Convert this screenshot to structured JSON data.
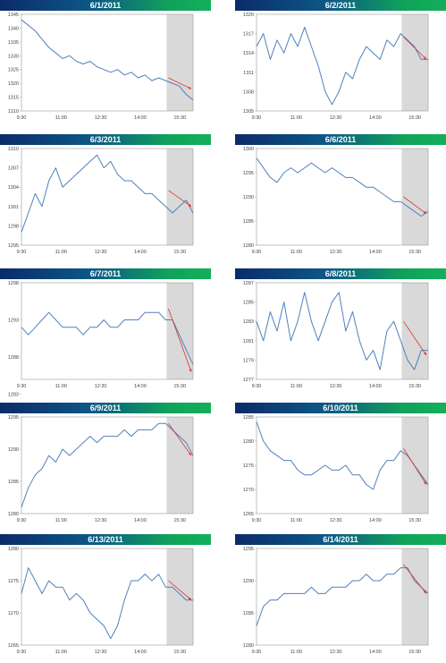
{
  "colors": {
    "line": "#4f81bd",
    "trend": "#e0312f",
    "shade": "#d9d9d9",
    "header_start": "#0b2b6b",
    "header_end": "#12b05a"
  },
  "chart_data": [
    {
      "type": "line",
      "title": "6/1/2011",
      "ylim": [
        1310,
        1345
      ],
      "yticks": [
        "1345",
        "1340",
        "1335",
        "1330",
        "1325",
        "1320",
        "1315",
        "1310"
      ],
      "xticks": [
        "9:30",
        "11:00",
        "12:30",
        "14:00",
        "15:30"
      ],
      "shaded_from": "15:00",
      "trend": {
        "from": 1322,
        "to": 1318
      },
      "values": [
        1343,
        1341,
        1339,
        1336,
        1333,
        1331,
        1329,
        1330,
        1328,
        1327,
        1328,
        1326,
        1325,
        1324,
        1325,
        1323,
        1324,
        1322,
        1323,
        1321,
        1322,
        1321,
        1320,
        1319,
        1316,
        1314
      ]
    },
    {
      "type": "line",
      "title": "6/2/2011",
      "ylim": [
        1305,
        1320
      ],
      "yticks": [
        "1320",
        "1317",
        "1314",
        "1311",
        "1308",
        "1305"
      ],
      "xticks": [
        "9:30",
        "11:00",
        "12:30",
        "14:00",
        "15:30"
      ],
      "shaded_from": "15:00",
      "trend": {
        "from": 1316.5,
        "to": 1313
      },
      "values": [
        1315,
        1317,
        1313,
        1316,
        1314,
        1317,
        1315,
        1318,
        1315,
        1312,
        1308,
        1306,
        1308,
        1311,
        1310,
        1313,
        1315,
        1314,
        1313,
        1316,
        1315,
        1317,
        1316,
        1315,
        1313,
        1313
      ]
    },
    {
      "type": "line",
      "title": "6/3/2011",
      "ylim": [
        1295,
        1310
      ],
      "yticks": [
        "1310",
        "1307",
        "1304",
        "1301",
        "1298",
        "1295"
      ],
      "xticks": [
        "9:30",
        "11:00",
        "12:30",
        "14:00",
        "15:30"
      ],
      "shaded_from": "15:00",
      "trend": {
        "from": 1303.5,
        "to": 1301
      },
      "values": [
        1297,
        1300,
        1303,
        1301,
        1305,
        1307,
        1304,
        1305,
        1306,
        1307,
        1308,
        1309,
        1307,
        1308,
        1306,
        1305,
        1305,
        1304,
        1303,
        1303,
        1302,
        1301,
        1300,
        1301,
        1302,
        1300
      ]
    },
    {
      "type": "line",
      "title": "6/6/2011",
      "ylim": [
        1280,
        1300
      ],
      "yticks": [
        "1300",
        "1295",
        "1290",
        "1285",
        "1280"
      ],
      "xticks": [
        "9:30",
        "11:00",
        "12:30",
        "14:00",
        "15:30"
      ],
      "shaded_from": "15:00",
      "trend": {
        "from": 1290,
        "to": 1286.5
      },
      "values": [
        1298,
        1296,
        1294,
        1293,
        1295,
        1296,
        1295,
        1296,
        1297,
        1296,
        1295,
        1296,
        1295,
        1294,
        1294,
        1293,
        1292,
        1292,
        1291,
        1290,
        1289,
        1289,
        1288,
        1287,
        1286,
        1287
      ]
    },
    {
      "type": "line",
      "title": "6/7/2011",
      "ylim": [
        1285,
        1298
      ],
      "yticks": [
        "1298",
        "1293",
        "1288",
        "1283"
      ],
      "xticks": [
        "9:30",
        "11:00",
        "12:30",
        "14:00",
        "15:30"
      ],
      "shaded_from": "15:00",
      "trend": {
        "from": 1294.5,
        "to": 1286
      },
      "values": [
        1292,
        1291,
        1292,
        1293,
        1294,
        1293,
        1292,
        1292,
        1292,
        1291,
        1292,
        1292,
        1293,
        1292,
        1292,
        1293,
        1293,
        1293,
        1294,
        1294,
        1294,
        1293,
        1293,
        1291,
        1289,
        1287
      ]
    },
    {
      "type": "line",
      "title": "6/8/2011",
      "ylim": [
        1277,
        1287
      ],
      "yticks": [
        "1287",
        "1285",
        "1283",
        "1281",
        "1279",
        "1277"
      ],
      "xticks": [
        "9:30",
        "11:00",
        "12:30",
        "14:00",
        "15:30"
      ],
      "shaded_from": "15:00",
      "trend": {
        "from": 1283,
        "to": 1279.5
      },
      "values": [
        1283,
        1281,
        1284,
        1282,
        1285,
        1281,
        1283,
        1286,
        1283,
        1281,
        1283,
        1285,
        1286,
        1282,
        1284,
        1281,
        1279,
        1280,
        1278,
        1282,
        1283,
        1281,
        1279,
        1278,
        1280,
        1280
      ]
    },
    {
      "type": "line",
      "title": "6/9/2011",
      "ylim": [
        1280,
        1295
      ],
      "yticks": [
        "1295",
        "1290",
        "1285",
        "1280"
      ],
      "xticks": [
        "9:30",
        "11:00",
        "12:30",
        "14:00",
        "15:30"
      ],
      "shaded_from": "15:00",
      "trend": {
        "from": 1294,
        "to": 1289
      },
      "values": [
        1281,
        1284,
        1286,
        1287,
        1289,
        1288,
        1290,
        1289,
        1290,
        1291,
        1292,
        1291,
        1292,
        1292,
        1292,
        1293,
        1292,
        1293,
        1293,
        1293,
        1294,
        1294,
        1293,
        1292,
        1291,
        1289
      ]
    },
    {
      "type": "line",
      "title": "6/10/2011",
      "ylim": [
        1265,
        1285
      ],
      "yticks": [
        "1285",
        "1280",
        "1275",
        "1270",
        "1265"
      ],
      "xticks": [
        "9:30",
        "11:00",
        "12:30",
        "14:00",
        "15:30"
      ],
      "shaded_from": "15:00",
      "trend": {
        "from": 1278.5,
        "to": 1271
      },
      "values": [
        1284,
        1280,
        1278,
        1277,
        1276,
        1276,
        1274,
        1273,
        1273,
        1274,
        1275,
        1274,
        1274,
        1275,
        1273,
        1273,
        1271,
        1270,
        1274,
        1276,
        1276,
        1278,
        1277,
        1275,
        1273,
        1271
      ]
    },
    {
      "type": "line",
      "title": "6/13/2011",
      "ylim": [
        1265,
        1280
      ],
      "yticks": [
        "1280",
        "1275",
        "1270",
        "1265"
      ],
      "xticks": [
        "9:30",
        "11:00",
        "12:30",
        "14:00",
        "15:30"
      ],
      "shaded_from": "15:00",
      "trend": {
        "from": 1275,
        "to": 1272
      },
      "values": [
        1273,
        1277,
        1275,
        1273,
        1275,
        1274,
        1274,
        1272,
        1273,
        1272,
        1270,
        1269,
        1268,
        1266,
        1268,
        1272,
        1275,
        1275,
        1276,
        1275,
        1276,
        1274,
        1274,
        1273,
        1272,
        1272
      ]
    },
    {
      "type": "line",
      "title": "6/14/2011",
      "ylim": [
        1280,
        1295
      ],
      "yticks": [
        "1295",
        "1290",
        "1285",
        "1280"
      ],
      "xticks": [
        "9:30",
        "11:00",
        "12:30",
        "14:00",
        "15:30"
      ],
      "shaded_from": "15:00",
      "trend": {
        "from": 1292.5,
        "to": 1288
      },
      "values": [
        1283,
        1286,
        1287,
        1287,
        1288,
        1288,
        1288,
        1288,
        1289,
        1288,
        1288,
        1289,
        1289,
        1289,
        1290,
        1290,
        1291,
        1290,
        1290,
        1291,
        1291,
        1292,
        1292,
        1290,
        1289,
        1288
      ]
    }
  ]
}
